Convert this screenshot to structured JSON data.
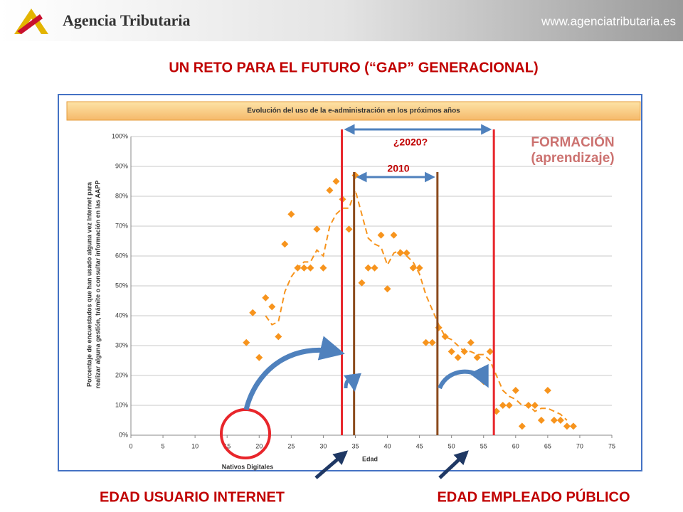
{
  "header": {
    "brand": "Agencia Tributaria",
    "url": "www.agenciatributaria.es"
  },
  "slide": {
    "title": "UN RETO PARA EL FUTURO (“GAP” GENERACIONAL)",
    "left_caption": "EDAD USUARIO INTERNET",
    "right_caption": "EDAD EMPLEADO PÚBLICO"
  },
  "chart_data": {
    "type": "scatter",
    "title": "Evolución  del uso de la e-administración en los próximos años",
    "x_label": "Edad",
    "y_label": [
      "Porcentaje de encuestados que han usado alguna vez Internet para",
      "realizar alguna gestión, trámite o consultar información en las AAPP"
    ],
    "x": [
      18,
      19,
      20,
      21,
      22,
      23,
      24,
      25,
      26,
      27,
      28,
      29,
      30,
      31,
      32,
      33,
      34,
      35,
      36,
      37,
      38,
      39,
      40,
      41,
      42,
      43,
      44,
      45,
      46,
      47,
      48,
      49,
      50,
      51,
      52,
      53,
      54,
      55,
      56,
      57,
      58,
      59,
      60,
      61,
      62,
      63,
      64,
      65,
      66,
      67,
      68,
      69
    ],
    "series": [
      {
        "color": "#f7941d",
        "style": "marker",
        "values": [
          31,
          41,
          26,
          46,
          43,
          33,
          64,
          74,
          56,
          56,
          56,
          69,
          56,
          82,
          85,
          79,
          69,
          87,
          51,
          56,
          56,
          67,
          49,
          67,
          61,
          61,
          56,
          56,
          31,
          31,
          36,
          33,
          28,
          26,
          28,
          31,
          26,
          18,
          28,
          8,
          10,
          10,
          15,
          3,
          10,
          10,
          5,
          15,
          5,
          5,
          3,
          3
        ]
      },
      {
        "color": "#f7941d",
        "style": "dashed",
        "values": [
          null,
          null,
          null,
          40,
          37,
          38,
          48,
          53,
          56,
          58,
          58,
          62,
          60,
          70,
          74,
          76,
          76,
          82,
          74,
          66,
          64,
          63,
          57,
          61,
          62,
          60,
          58,
          54,
          47,
          42,
          37,
          33,
          32,
          30,
          28,
          28,
          27,
          27,
          25,
          20,
          15,
          13,
          12,
          10,
          10,
          8,
          9,
          9,
          8,
          7,
          5,
          null
        ]
      }
    ],
    "xlim": [
      0,
      75
    ],
    "xticks": [
      0,
      5,
      10,
      15,
      20,
      25,
      30,
      35,
      40,
      45,
      50,
      55,
      60,
      65,
      70,
      75
    ],
    "ylim": [
      0,
      100
    ],
    "yticks": [
      {
        "value": 0,
        "label": "0%"
      },
      {
        "value": 10,
        "label": "10%"
      },
      {
        "value": 20,
        "label": "20%"
      },
      {
        "value": 30,
        "label": "30%"
      },
      {
        "value": 40,
        "label": "40%"
      },
      {
        "value": 50,
        "label": "50%"
      },
      {
        "value": 60,
        "label": "60%"
      },
      {
        "value": 70,
        "label": "70%"
      },
      {
        "value": 80,
        "label": "80%"
      },
      {
        "value": 90,
        "label": "90%"
      },
      {
        "value": 100,
        "label": "100%"
      }
    ],
    "grid": true,
    "vlines": [
      {
        "value": 32.9,
        "color": "#e8262b"
      },
      {
        "value": 56.6,
        "color": "#e8262b"
      },
      {
        "value": 34.8,
        "color": "#8b4a1c"
      },
      {
        "value": 47.8,
        "color": "#8b4a1c"
      }
    ],
    "annotations": {
      "future": "¿2020?",
      "now": "2010",
      "training": "FORMACIÓN",
      "training_sub": "(aprendizaje)",
      "natives": "Nativos Digitales"
    }
  }
}
